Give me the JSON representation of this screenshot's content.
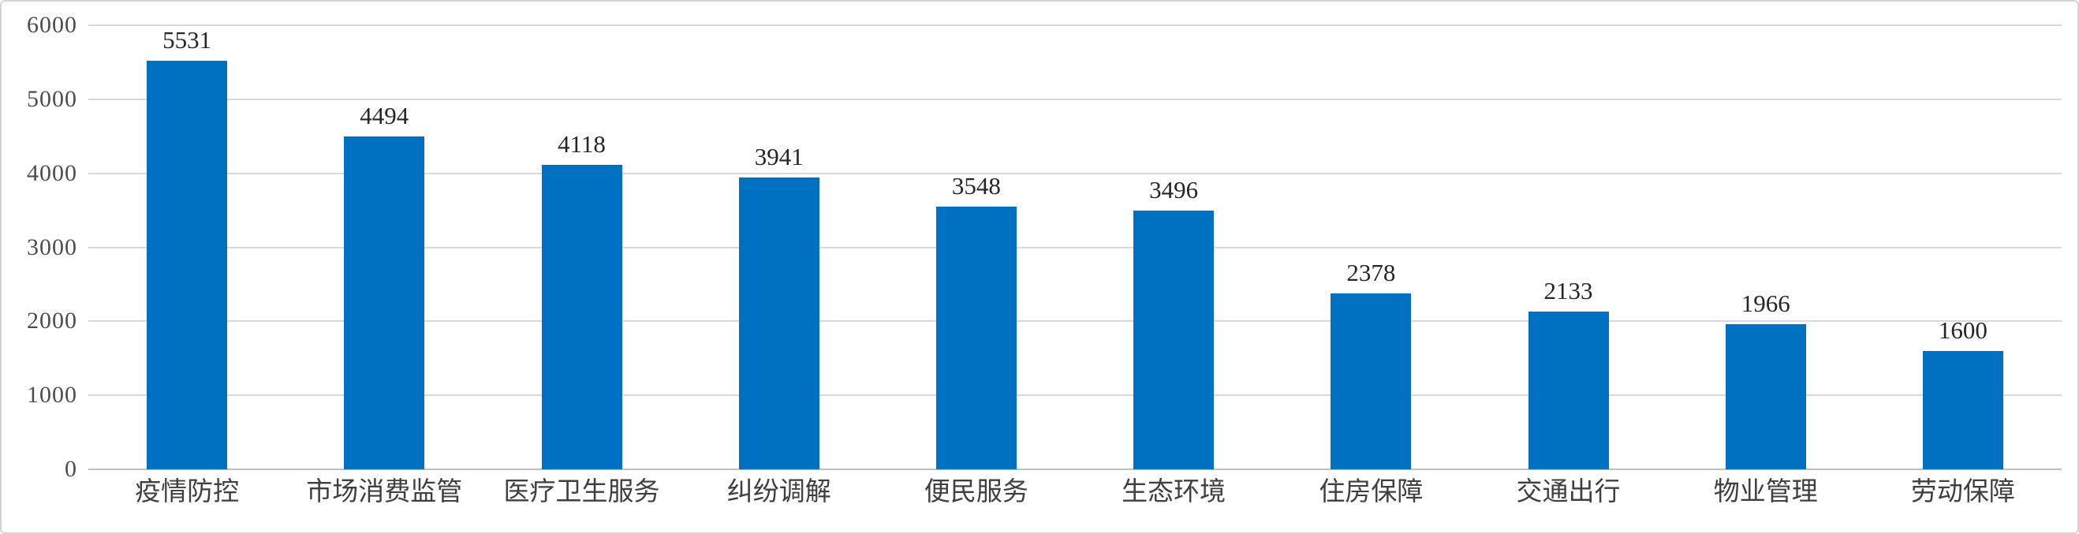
{
  "chart_data": {
    "type": "bar",
    "categories": [
      "疫情防控",
      "市场消费监管",
      "医疗卫生服务",
      "纠纷调解",
      "便民服务",
      "生态环境",
      "住房保障",
      "交通出行",
      "物业管理",
      "劳动保障"
    ],
    "values": [
      5531,
      4494,
      4118,
      3941,
      3548,
      3496,
      2378,
      2133,
      1966,
      1600
    ],
    "value_labels": [
      "5531",
      "4494",
      "4118",
      "3941",
      "3548",
      "3496",
      "2378",
      "2133",
      "1966",
      "1600"
    ],
    "title": "",
    "xlabel": "",
    "ylabel": "",
    "ylim": [
      0,
      6000
    ],
    "yticks": [
      0,
      1000,
      2000,
      3000,
      4000,
      5000,
      6000
    ],
    "ytick_labels": [
      "0",
      "1000",
      "2000",
      "3000",
      "4000",
      "5000",
      "6000"
    ],
    "grid": true,
    "legend": false,
    "data_labels": "above bars",
    "colors": {
      "bar": "#0070C0",
      "gridline": "#D9D9D9",
      "zero_axis_line": "#BFBFBF",
      "value_label_text": "#262626",
      "axis_tick_text": "#4D4D4D",
      "category_text": "#3F3F3F",
      "background": "#FFFFFF",
      "frame_border": "#D4D4D4"
    }
  }
}
